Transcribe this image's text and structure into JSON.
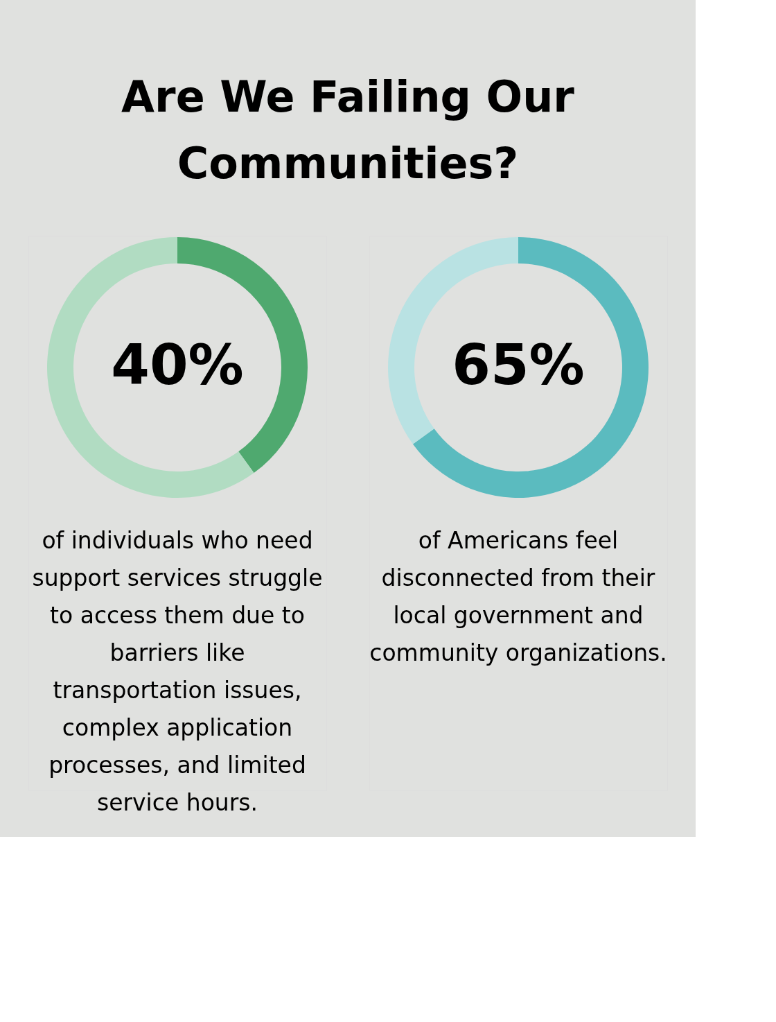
{
  "chart_data": [
    {
      "type": "donut",
      "title": "Are We Failing Our Communities?",
      "categories": [
        null,
        null
      ],
      "values": [
        40,
        60
      ],
      "colors": [
        "#4fa96f",
        "#b1dcc2"
      ],
      "value_labels": [
        "40%",
        null
      ],
      "annotations": [
        "of individuals who need support services struggle to access them due to barriers like transportation issues, complex application processes, and limited service hours."
      ]
    },
    {
      "type": "donut",
      "categories": [
        null,
        null
      ],
      "values": [
        65,
        35
      ],
      "colors": [
        "#5bbbbf",
        "#b9e2e3"
      ],
      "value_labels": [
        "65%",
        null
      ],
      "annotations": [
        "of Americans feel disconnected from their local government and community organizations."
      ]
    }
  ]
}
